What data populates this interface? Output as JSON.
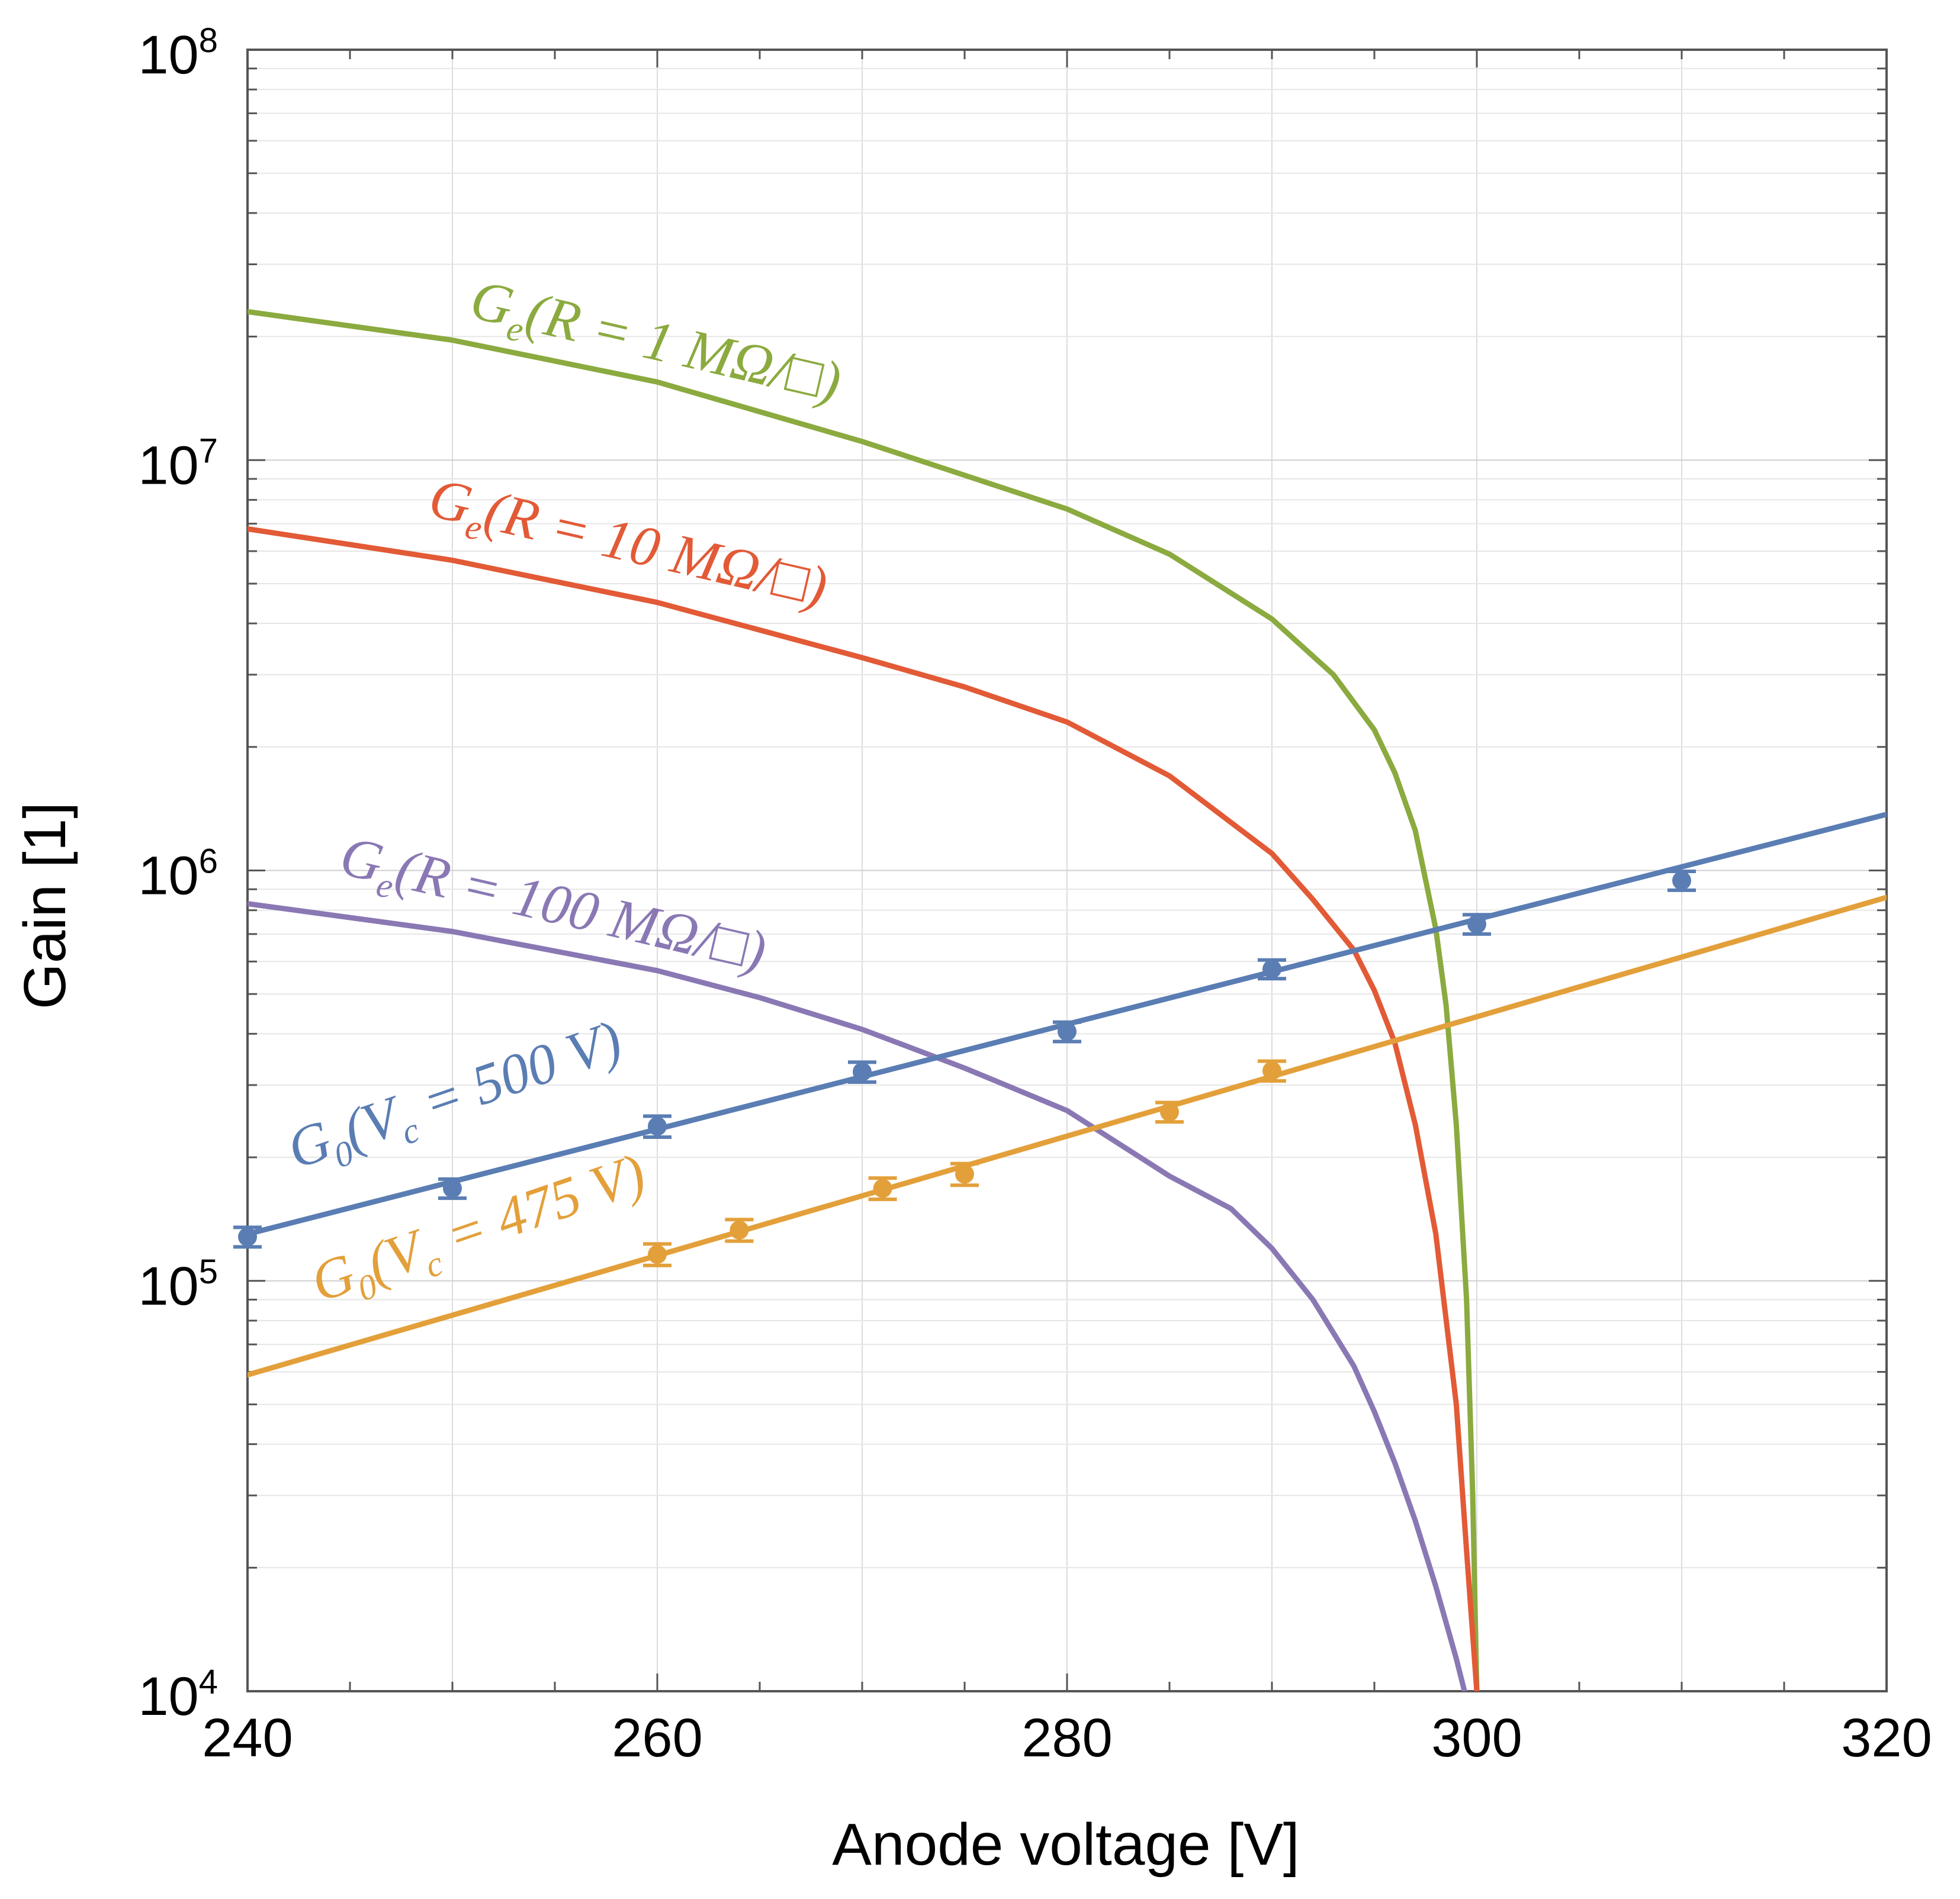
{
  "chart_data": {
    "type": "line",
    "xlabel": "Anode voltage [V]",
    "ylabel": "Gain [1]",
    "xlim": [
      240,
      320
    ],
    "ylim": [
      10000,
      100000000
    ],
    "yscale": "log",
    "grid": true,
    "x_ticks": [
      "240",
      "260",
      "280",
      "300",
      "320"
    ],
    "y_ticks": [
      {
        "base": "10",
        "exp": "4"
      },
      {
        "base": "10",
        "exp": "5"
      },
      {
        "base": "10",
        "exp": "6"
      },
      {
        "base": "10",
        "exp": "7"
      },
      {
        "base": "10",
        "exp": "8"
      }
    ],
    "series": [
      {
        "name": "Ge_R1",
        "kind": "curve",
        "color": "#8BAA3F",
        "label_main": "G",
        "label_sub": "e",
        "label_rest": "(R = 1 MΩ/□)",
        "x": [
          240,
          250,
          260,
          270,
          280,
          285,
          290,
          293,
          295,
          296,
          297,
          298,
          298.5,
          299,
          299.5,
          299.8,
          300
        ],
        "y": [
          23000000,
          19600000,
          15500000,
          11100000,
          7600000,
          5900000,
          4100000,
          3000000,
          2200000,
          1730000,
          1250000,
          720000,
          470000,
          240000,
          90000,
          30000,
          10000
        ]
      },
      {
        "name": "Ge_R10",
        "kind": "curve",
        "color": "#E25A36",
        "label_main": "G",
        "label_sub": "e",
        "label_rest": "(R = 10 MΩ/□)",
        "x": [
          240,
          250,
          260,
          270,
          275,
          280,
          285,
          290,
          292,
          294,
          295,
          296,
          297,
          298,
          299,
          299.5,
          300
        ],
        "y": [
          6800000,
          5700000,
          4500000,
          3300000,
          2800000,
          2300000,
          1700000,
          1100000,
          850000,
          640000,
          510000,
          380000,
          240000,
          130000,
          50000,
          22000,
          10000
        ]
      },
      {
        "name": "Ge_R100",
        "kind": "curve",
        "color": "#8A78B4",
        "label_main": "G",
        "label_sub": "e",
        "label_rest": "(R = 100 MΩ/□)",
        "x": [
          240,
          250,
          260,
          265,
          270,
          275,
          280,
          285,
          288,
          290,
          292,
          294,
          295,
          296,
          297,
          298,
          299,
          299.4
        ],
        "y": [
          830000,
          710000,
          570000,
          490000,
          410000,
          330000,
          260000,
          180000,
          150000,
          120000,
          90000,
          62000,
          48000,
          36000,
          26000,
          18000,
          12000,
          10000
        ]
      },
      {
        "name": "G0_Vc500",
        "kind": "fit",
        "color": "#5A7DB3",
        "label_main": "G",
        "label_sub": "0",
        "label_rest": "(V",
        "label_sub2": "c",
        "label_tail": " = 500 V)",
        "x": [
          240,
          320
        ],
        "y": [
          130000,
          1370000
        ],
        "points": [
          {
            "x": 240,
            "y": 128000,
            "err": 7000
          },
          {
            "x": 250,
            "y": 168000,
            "err": 9000
          },
          {
            "x": 260,
            "y": 238000,
            "err": 14000
          },
          {
            "x": 270,
            "y": 323000,
            "err": 18000
          },
          {
            "x": 280,
            "y": 405000,
            "err": 22000
          },
          {
            "x": 290,
            "y": 575000,
            "err": 30000
          },
          {
            "x": 300,
            "y": 740000,
            "err": 40000
          },
          {
            "x": 310,
            "y": 945000,
            "err": 50000
          }
        ]
      },
      {
        "name": "G0_Vc475",
        "kind": "fit",
        "color": "#E3A03A",
        "label_main": "G",
        "label_sub": "0",
        "label_rest": "(V",
        "label_sub2": "c",
        "label_tail": " =  475 V)",
        "x": [
          240,
          320
        ],
        "y": [
          59000,
          860000
        ],
        "points": [
          {
            "x": 260,
            "y": 116000,
            "err": 7000
          },
          {
            "x": 264,
            "y": 133000,
            "err": 8000
          },
          {
            "x": 271,
            "y": 168000,
            "err": 10000
          },
          {
            "x": 275,
            "y": 182000,
            "err": 11000
          },
          {
            "x": 285,
            "y": 258000,
            "err": 14000
          },
          {
            "x": 290,
            "y": 325000,
            "err": 18000
          }
        ]
      }
    ]
  }
}
